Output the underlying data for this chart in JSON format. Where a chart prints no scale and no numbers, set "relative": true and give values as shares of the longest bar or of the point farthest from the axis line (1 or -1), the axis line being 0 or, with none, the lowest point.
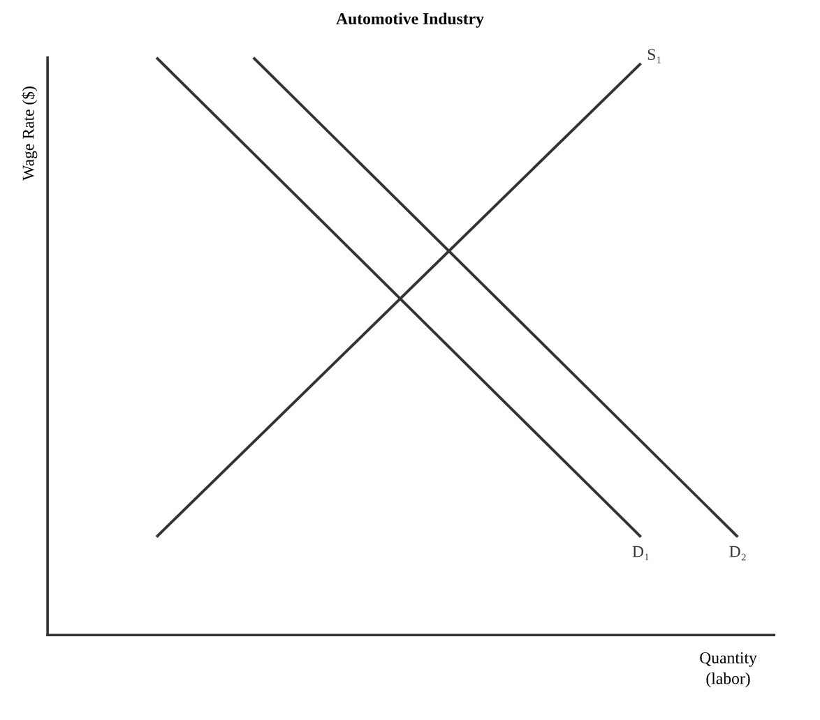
{
  "chart_data": {
    "type": "line",
    "title": "Automotive Industry",
    "xlabel": "Quantity\n(labor)",
    "ylabel": "Wage Rate ($)",
    "relative": true,
    "legend": false,
    "marker": "none",
    "line_style": "solid",
    "categories": [
      null,
      null,
      null,
      null,
      null,
      null,
      null,
      null,
      null,
      null,
      null,
      null,
      null,
      null,
      null,
      null,
      null,
      null,
      null,
      null,
      null,
      null,
      null,
      null,
      null,
      null,
      null,
      null,
      null,
      null
    ],
    "series": [
      {
        "name": "D₁",
        "color": "#333333",
        "values": [
          null,
          null,
          null,
          null,
          1.0,
          null,
          null,
          null,
          null,
          null,
          null,
          null,
          null,
          null,
          null,
          null,
          null,
          null,
          null,
          null,
          null,
          null,
          null,
          null,
          0.17,
          null,
          null,
          null,
          null,
          null
        ]
      },
      {
        "name": "D₂",
        "color": "#333333",
        "values": [
          null,
          null,
          null,
          null,
          null,
          null,
          null,
          null,
          1.0,
          null,
          null,
          null,
          null,
          null,
          null,
          null,
          null,
          null,
          null,
          null,
          null,
          null,
          null,
          null,
          null,
          null,
          null,
          null,
          0.17,
          null
        ]
      },
      {
        "name": "S₁",
        "color": "#333333",
        "values": [
          null,
          null,
          null,
          null,
          0.17,
          null,
          null,
          null,
          null,
          null,
          null,
          null,
          null,
          null,
          null,
          null,
          null,
          null,
          null,
          null,
          null,
          null,
          null,
          null,
          0.99,
          null,
          null,
          null,
          null,
          null
        ]
      }
    ]
  }
}
